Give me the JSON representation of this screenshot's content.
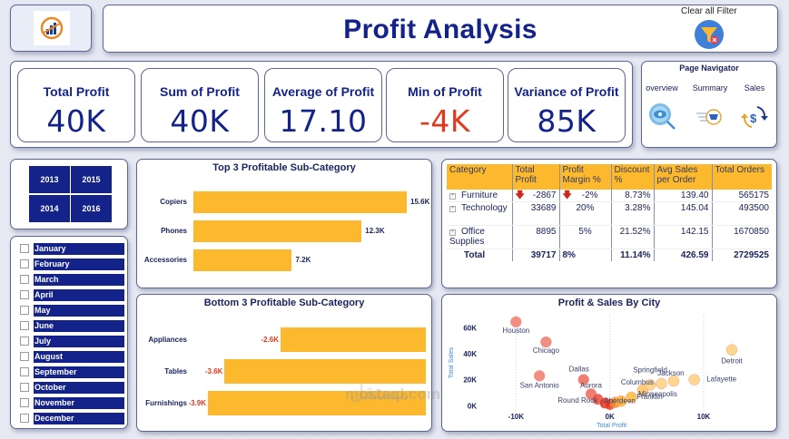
{
  "header": {
    "title": "Profit Analysis",
    "clear_filter_label": "Clear all Filter"
  },
  "kpis": [
    {
      "label": "Total Profit",
      "value": "40K",
      "negative": false
    },
    {
      "label": "Sum of Profit",
      "value": "40K",
      "negative": false
    },
    {
      "label": "Average of Profit",
      "value": "17.10",
      "negative": false
    },
    {
      "label": "Min of Profit",
      "value": "-4K",
      "negative": true
    },
    {
      "label": "Variance of Profit",
      "value": "85K",
      "negative": false
    }
  ],
  "navigator": {
    "title": "Page Navigator",
    "items": [
      {
        "label": "overview",
        "icon": "eye-search-icon"
      },
      {
        "label": "Summary",
        "icon": "cart-icon"
      },
      {
        "label": "Sales",
        "icon": "currency-exchange-icon"
      }
    ]
  },
  "years": [
    "2013",
    "2015",
    "2014",
    "2016"
  ],
  "months": [
    "January",
    "February",
    "March",
    "April",
    "May",
    "June",
    "July",
    "August",
    "September",
    "October",
    "November",
    "December"
  ],
  "colors": {
    "brand": "#14238a",
    "bar": "#fdb92e",
    "negative": "#e03a1e"
  },
  "chart_data": [
    {
      "type": "bar",
      "title": "Top 3 Profitable Sub-Category",
      "categories": [
        "Copiers",
        "Phones",
        "Accessories"
      ],
      "values": [
        15600,
        12300,
        7200
      ],
      "labels": [
        "15.6K",
        "12.3K",
        "7.2K"
      ],
      "orientation": "horizontal"
    },
    {
      "type": "bar",
      "title": "Bottom 3 Profitable Sub-Category",
      "categories": [
        "Appliances",
        "Tables",
        "Furnishings"
      ],
      "values": [
        -2600,
        -3600,
        -3900
      ],
      "labels": [
        "-2.6K",
        "-3.6K",
        "-3.9K"
      ],
      "orientation": "horizontal"
    },
    {
      "type": "table",
      "columns": [
        "Category",
        "Total Profit",
        "Profit Margin %",
        "Discount %",
        "Avg Sales per Order",
        "Total Orders"
      ],
      "rows": [
        {
          "category": "Furniture",
          "total_profit": "-2867",
          "profit_down": true,
          "profit_margin": "-2%",
          "margin_down": true,
          "discount": "8.73%",
          "avg_sales": "139.40",
          "orders": "565175"
        },
        {
          "category": "Technology",
          "total_profit": "33689",
          "profit_down": false,
          "profit_margin": "20%",
          "margin_down": false,
          "discount": "3.28%",
          "avg_sales": "145.04",
          "orders": "493500"
        },
        {
          "category": "Office Supplies",
          "total_profit": "8895",
          "profit_down": false,
          "profit_margin": "5%",
          "margin_down": false,
          "discount": "21.52%",
          "avg_sales": "142.15",
          "orders": "1670850"
        }
      ],
      "total": {
        "category": "Total",
        "total_profit": "39717",
        "profit_margin": "8%",
        "discount": "11.14%",
        "avg_sales": "426.59",
        "orders": "2729525"
      }
    },
    {
      "type": "scatter",
      "title": "Profit & Sales By City",
      "xlabel": "Total Profit",
      "ylabel": "Total Sales",
      "xlim": [
        -14000,
        16000
      ],
      "ylim": [
        -4000,
        70000
      ],
      "x_ticks": [
        {
          "value": -10000,
          "label": "-10K"
        },
        {
          "value": 0,
          "label": "0K"
        },
        {
          "value": 10000,
          "label": "10K"
        }
      ],
      "y_ticks": [
        {
          "value": 0,
          "label": "0K"
        },
        {
          "value": 20000,
          "label": "20K"
        },
        {
          "value": 40000,
          "label": "40K"
        },
        {
          "value": 60000,
          "label": "60K"
        }
      ],
      "points": [
        {
          "city": "Houston",
          "x": -10000,
          "y": 64500,
          "color": "#ef7b6c"
        },
        {
          "city": "Chicago",
          "x": -6800,
          "y": 49000,
          "color": "#ef7b6c"
        },
        {
          "city": "San Antonio",
          "x": -7500,
          "y": 23000,
          "color": "#ef7b6c"
        },
        {
          "city": "Dallas",
          "x": -2800,
          "y": 20000,
          "color": "#ef6658"
        },
        {
          "city": "Aurora",
          "x": -2000,
          "y": 9000,
          "color": "#ef6658"
        },
        {
          "city": "Round Rock",
          "x": -1300,
          "y": 5000,
          "color": "#e84a3a"
        },
        {
          "city": "Aberdeen",
          "x": -500,
          "y": 2000,
          "color": "#e02a1a"
        },
        {
          "city": "",
          "x": 0,
          "y": 1000,
          "color": "#e83a20"
        },
        {
          "city": "",
          "x": 600,
          "y": 2500,
          "color": "#f59020"
        },
        {
          "city": "",
          "x": 1200,
          "y": 3500,
          "color": "#fbb030"
        },
        {
          "city": "Franklin",
          "x": 2300,
          "y": 6500,
          "color": "#fbb93a"
        },
        {
          "city": "Columbus",
          "x": 3500,
          "y": 12000,
          "color": "#fcc45a"
        },
        {
          "city": "Springfield",
          "x": 4300,
          "y": 16000,
          "color": "#fdd07c"
        },
        {
          "city": "Minneapolis",
          "x": 5500,
          "y": 17000,
          "color": "#fdd07c"
        },
        {
          "city": "Jackson",
          "x": 6800,
          "y": 19000,
          "color": "#fdd07c"
        },
        {
          "city": "Lafayette",
          "x": 9000,
          "y": 20000,
          "color": "#fdd07c"
        },
        {
          "city": "Detroit",
          "x": 13000,
          "y": 43000,
          "color": "#fdd07c"
        }
      ]
    }
  ]
}
